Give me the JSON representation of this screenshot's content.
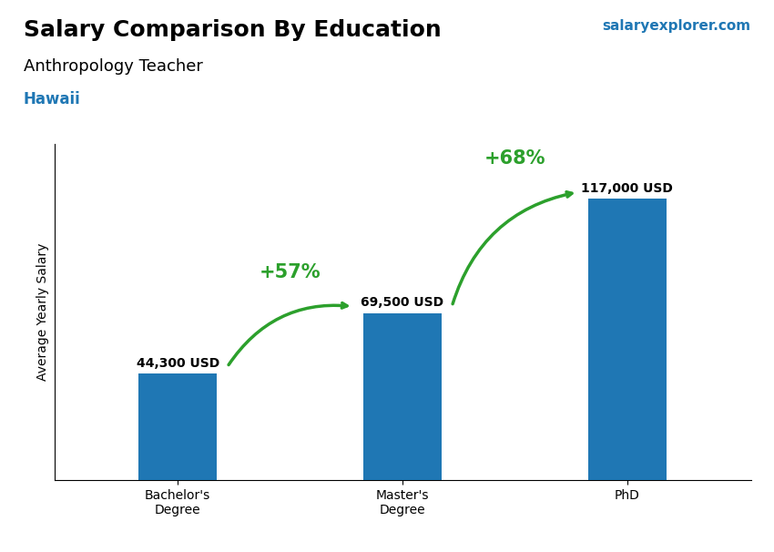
{
  "chart_data": {
    "type": "bar",
    "title": "Salary Comparison By Education",
    "subtitle": "Anthropology Teacher",
    "location": "Hawaii",
    "watermark": "salaryexplorer.com",
    "ylabel": "Average Yearly Salary",
    "categories": [
      "Bachelor's\nDegree",
      "Master's\nDegree",
      "PhD"
    ],
    "values": [
      44300,
      69500,
      117000
    ],
    "value_labels": [
      "44,300 USD",
      "69,500 USD",
      "117,000 USD"
    ],
    "data_labels": true,
    "annotations": [
      "+57%",
      "+68%"
    ],
    "ylim": [
      0,
      140000
    ],
    "tick_labels": "x"
  }
}
